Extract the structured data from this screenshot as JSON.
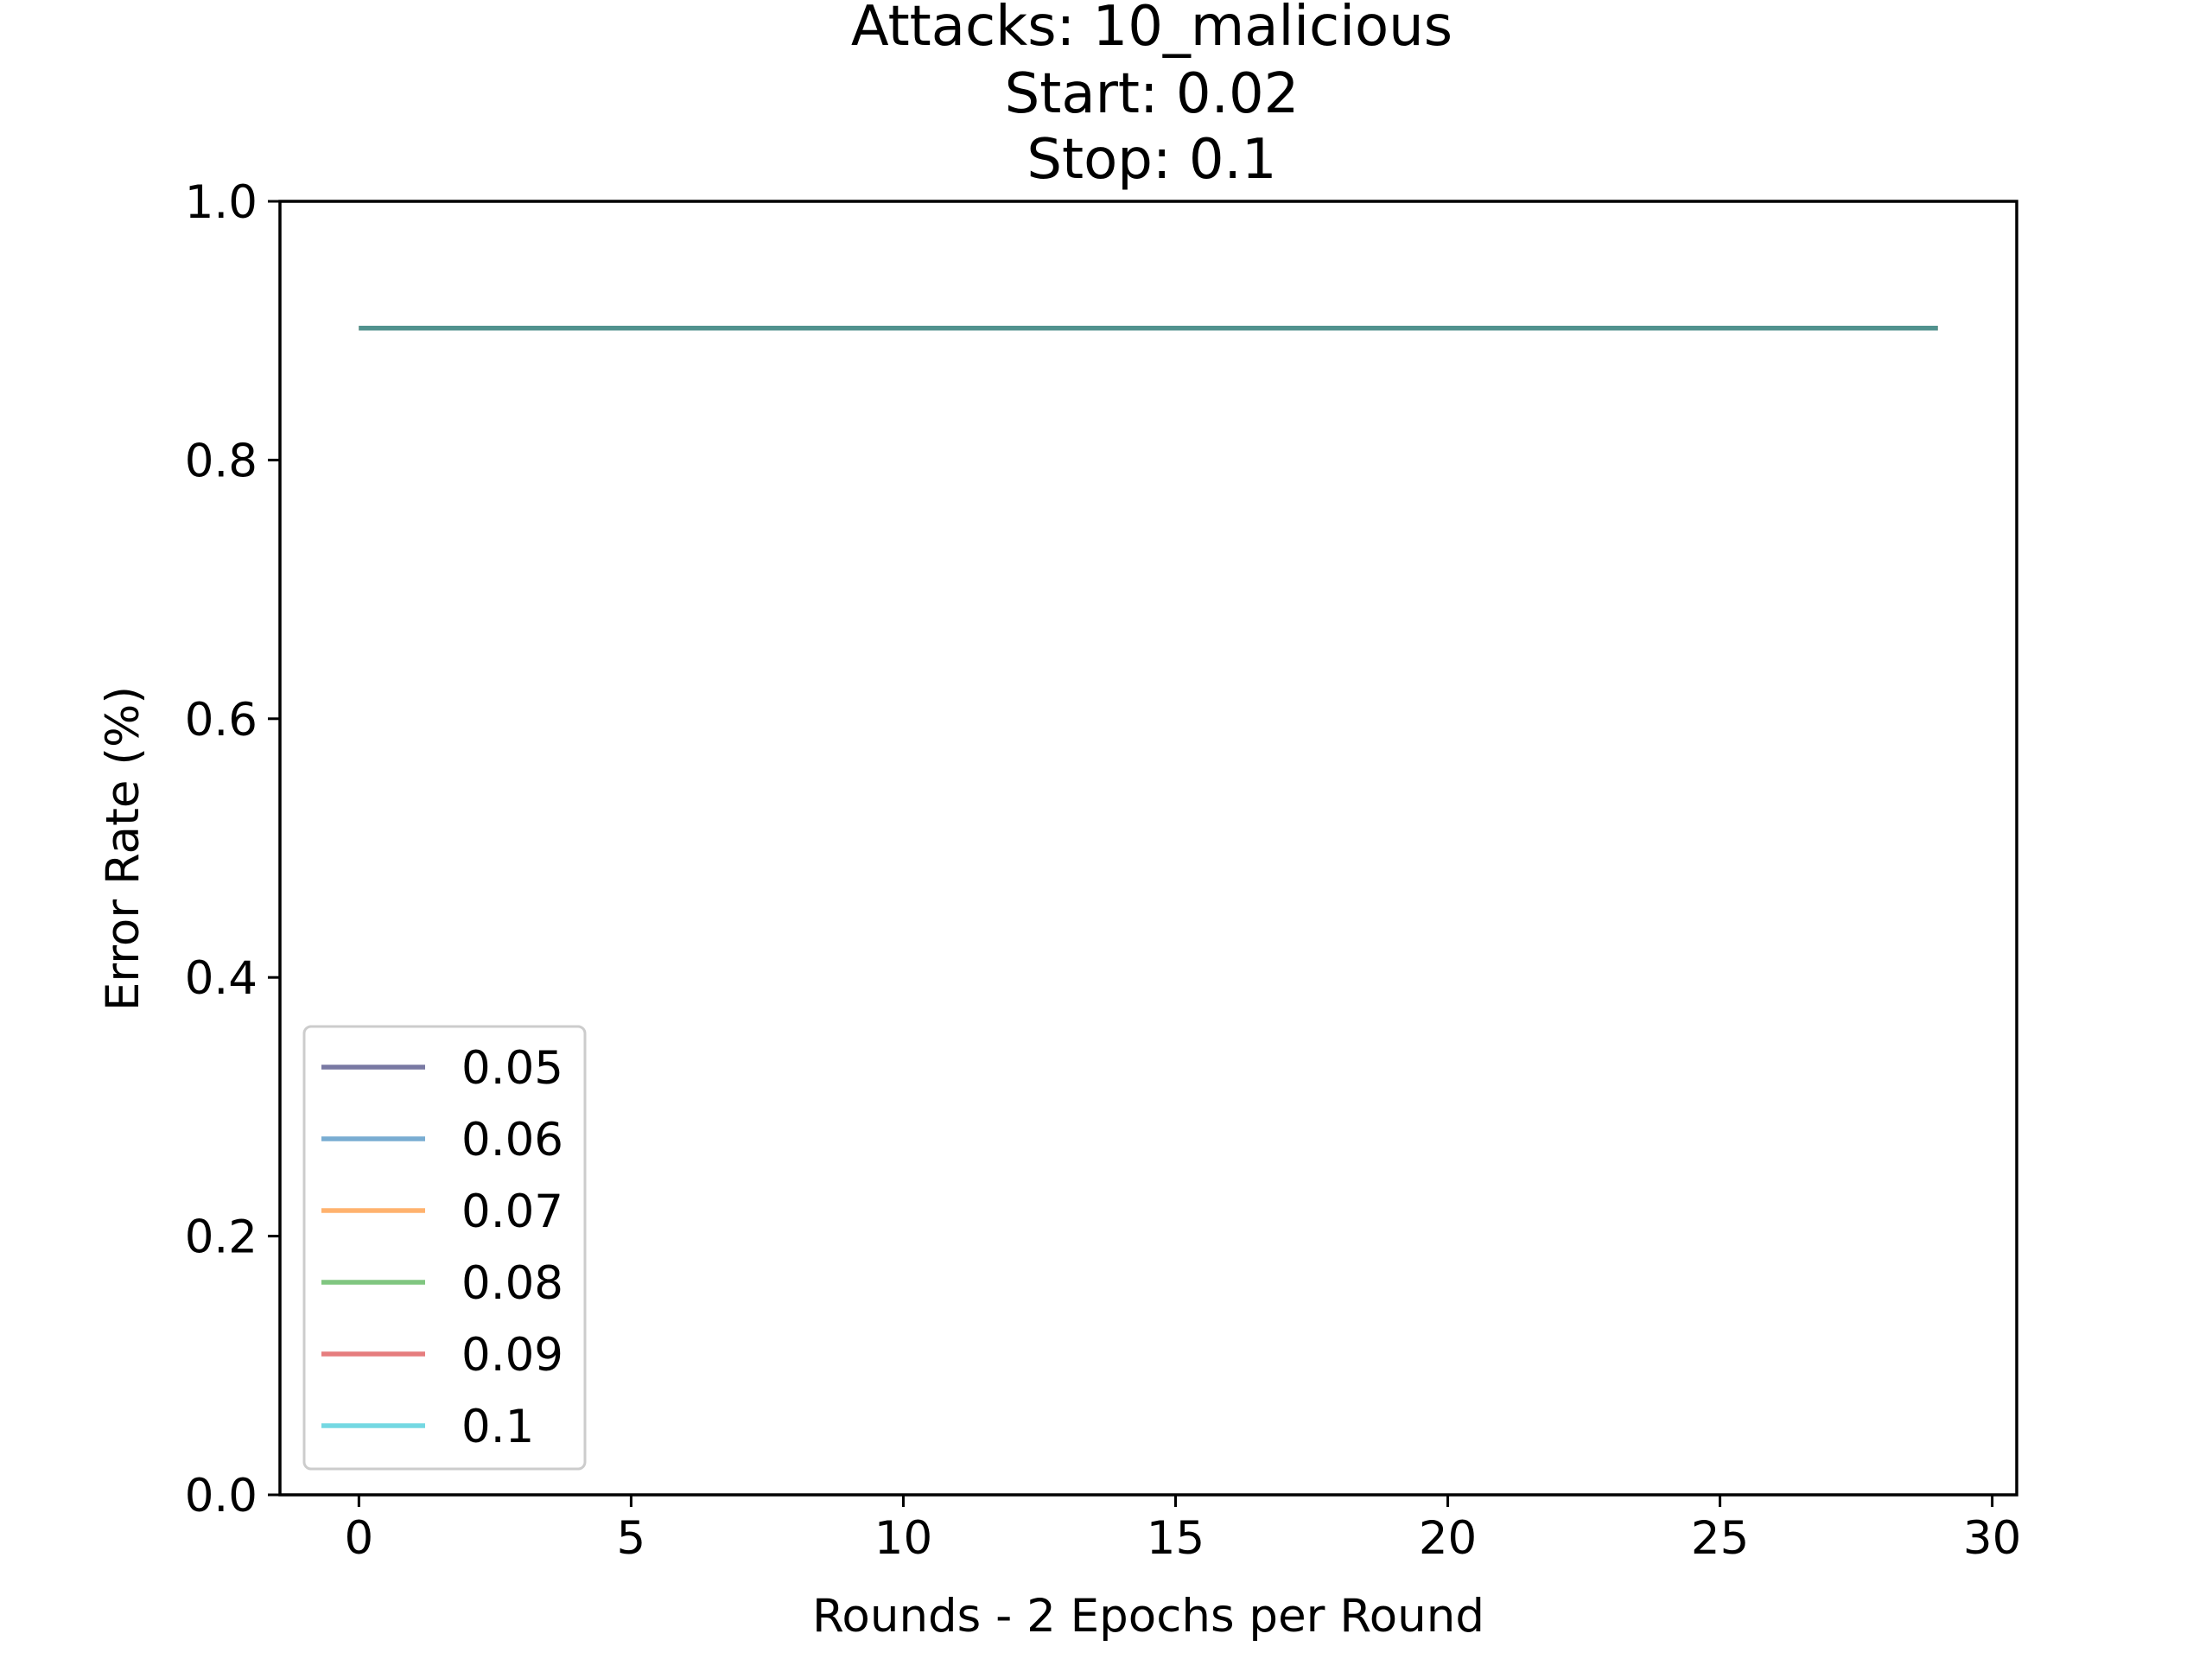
{
  "chart_data": {
    "type": "line",
    "title_lines": [
      "Attacks: 10_malicious",
      "Start: 0.02",
      "Stop: 0.1"
    ],
    "xlabel": "Rounds - 2 Epochs per Round",
    "ylabel": "Error Rate (%)",
    "xlim": [
      -1.45,
      30.45
    ],
    "ylim": [
      0.0,
      1.0
    ],
    "xticks": [
      0,
      5,
      10,
      15,
      20,
      25,
      30
    ],
    "xtick_labels": [
      "0",
      "5",
      "10",
      "15",
      "20",
      "25",
      "30"
    ],
    "yticks": [
      0.0,
      0.2,
      0.4,
      0.6,
      0.8,
      1.0
    ],
    "ytick_labels": [
      "0.0",
      "0.2",
      "0.4",
      "0.6",
      "0.8",
      "1.0"
    ],
    "grid": false,
    "legend_position": "lower-left",
    "series": [
      {
        "name": "0.05",
        "color": "#1f1f66",
        "x_start": 0,
        "x_end": 29,
        "values": [
          0.902,
          0.902,
          0.902,
          0.902,
          0.902,
          0.902,
          0.902,
          0.902,
          0.902,
          0.902,
          0.902,
          0.902,
          0.902,
          0.902,
          0.902,
          0.902,
          0.902,
          0.902,
          0.902,
          0.902,
          0.902,
          0.902,
          0.902,
          0.902,
          0.902,
          0.902,
          0.902,
          0.902,
          0.902,
          0.902
        ]
      },
      {
        "name": "0.06",
        "color": "#1f77b4",
        "x_start": 0,
        "x_end": 29,
        "values": [
          0.902,
          0.902,
          0.902,
          0.902,
          0.902,
          0.902,
          0.902,
          0.902,
          0.902,
          0.902,
          0.902,
          0.902,
          0.902,
          0.902,
          0.902,
          0.902,
          0.902,
          0.902,
          0.902,
          0.902,
          0.902,
          0.902,
          0.902,
          0.902,
          0.902,
          0.902,
          0.902,
          0.902,
          0.902,
          0.902
        ]
      },
      {
        "name": "0.07",
        "color": "#ff7f0e",
        "x_start": 0,
        "x_end": 29,
        "values": [
          0.902,
          0.902,
          0.902,
          0.902,
          0.902,
          0.902,
          0.902,
          0.902,
          0.902,
          0.902,
          0.902,
          0.902,
          0.902,
          0.902,
          0.902,
          0.902,
          0.902,
          0.902,
          0.902,
          0.902,
          0.902,
          0.902,
          0.902,
          0.902,
          0.902,
          0.902,
          0.902,
          0.902,
          0.902,
          0.902
        ]
      },
      {
        "name": "0.08",
        "color": "#2ca02c",
        "x_start": 0,
        "x_end": 29,
        "values": [
          0.902,
          0.902,
          0.902,
          0.902,
          0.902,
          0.902,
          0.902,
          0.902,
          0.902,
          0.902,
          0.902,
          0.902,
          0.902,
          0.902,
          0.902,
          0.902,
          0.902,
          0.902,
          0.902,
          0.902,
          0.902,
          0.902,
          0.902,
          0.902,
          0.902,
          0.902,
          0.902,
          0.902,
          0.902,
          0.902
        ]
      },
      {
        "name": "0.09",
        "color": "#d62728",
        "x_start": 0,
        "x_end": 29,
        "values": [
          0.902,
          0.902,
          0.902,
          0.902,
          0.902,
          0.902,
          0.902,
          0.902,
          0.902,
          0.902,
          0.902,
          0.902,
          0.902,
          0.902,
          0.902,
          0.902,
          0.902,
          0.902,
          0.902,
          0.902,
          0.902,
          0.902,
          0.902,
          0.902,
          0.902,
          0.902,
          0.902,
          0.902,
          0.902,
          0.902
        ]
      },
      {
        "name": "0.1",
        "color": "#17becf",
        "x_start": 0,
        "x_end": 29,
        "values": [
          0.902,
          0.902,
          0.902,
          0.902,
          0.902,
          0.902,
          0.902,
          0.902,
          0.902,
          0.902,
          0.902,
          0.902,
          0.902,
          0.902,
          0.902,
          0.902,
          0.902,
          0.902,
          0.902,
          0.902,
          0.902,
          0.902,
          0.902,
          0.902,
          0.902,
          0.902,
          0.902,
          0.902,
          0.902,
          0.902
        ]
      }
    ]
  }
}
